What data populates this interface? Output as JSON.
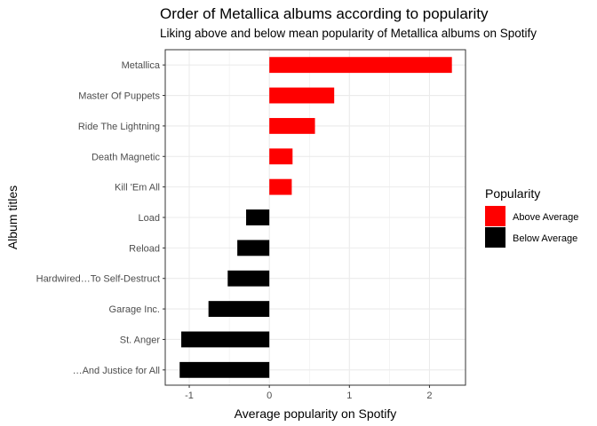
{
  "chart_data": {
    "type": "bar",
    "orientation": "horizontal",
    "title": "Order of Metallica albums according to popularity",
    "subtitle": "Liking above and below mean popularity of Metallica albums on Spotify",
    "xlabel": "Average popularity on Spotify",
    "ylabel": "Album titles",
    "xlim": [
      -1.3,
      2.45
    ],
    "xticks": [
      -1,
      0,
      1,
      2
    ],
    "xtick_labels": [
      "-1",
      "0",
      "1",
      "2"
    ],
    "grid": true,
    "legend": {
      "title": "Popularity",
      "placement": "right",
      "entries": [
        {
          "label": "Above Average",
          "color": "#ff0000"
        },
        {
          "label": "Below Average",
          "color": "#000000"
        }
      ]
    },
    "categories": [
      "Metallica",
      "Master Of Puppets",
      "Ride The Lightning",
      "Death Magnetic",
      "Kill 'Em All",
      "Load",
      "Reload",
      "Hardwired…To Self-Destruct",
      "Garage Inc.",
      "St. Anger",
      "…And Justice for All"
    ],
    "values": [
      2.28,
      0.81,
      0.57,
      0.29,
      0.28,
      -0.29,
      -0.4,
      -0.52,
      -0.76,
      -1.1,
      -1.12
    ],
    "groups": [
      "Above Average",
      "Above Average",
      "Above Average",
      "Above Average",
      "Above Average",
      "Below Average",
      "Below Average",
      "Below Average",
      "Below Average",
      "Below Average",
      "Below Average"
    ]
  }
}
